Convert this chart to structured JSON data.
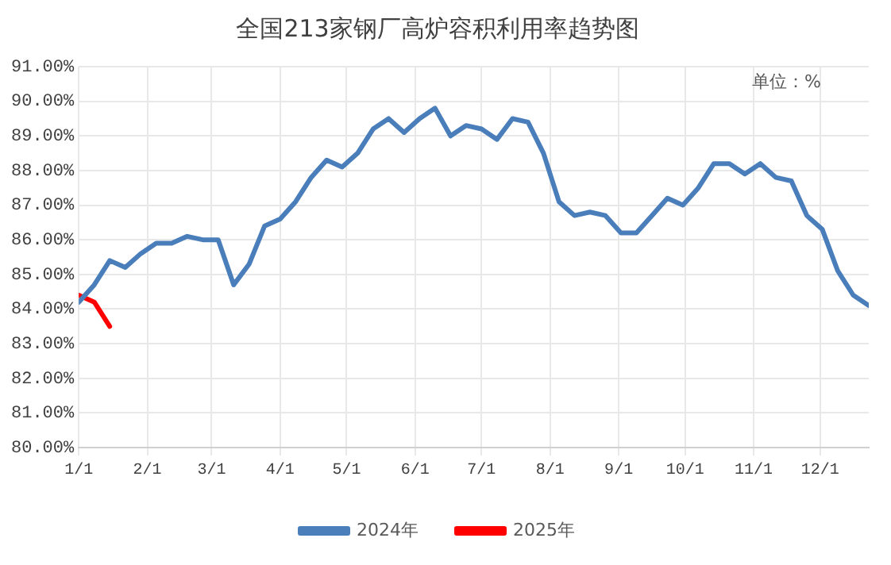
{
  "chart_data": {
    "type": "line",
    "title": "全国213家钢厂高炉容积利用率趋势图",
    "annotations": [
      "单位：%"
    ],
    "series": [
      {
        "name": "2024年",
        "color": "#4a7ebb",
        "x": [
          "--01-01",
          "--01-08",
          "--01-15",
          "--01-22",
          "--01-29",
          "--02-05",
          "--02-12",
          "--02-19",
          "--02-26",
          "--03-04",
          "--03-11",
          "--03-18",
          "--03-25",
          "--04-01",
          "--04-08",
          "--04-15",
          "--04-22",
          "--04-29",
          "--05-06",
          "--05-13",
          "--05-20",
          "--05-27",
          "--06-03",
          "--06-10",
          "--06-17",
          "--06-24",
          "--07-01",
          "--07-08",
          "--07-15",
          "--07-22",
          "--07-29",
          "--08-05",
          "--08-12",
          "--08-19",
          "--08-26",
          "--09-02",
          "--09-09",
          "--09-16",
          "--09-23",
          "--09-30",
          "--10-07",
          "--10-14",
          "--10-21",
          "--10-28",
          "--11-04",
          "--11-11",
          "--11-18",
          "--11-25",
          "--12-02",
          "--12-09",
          "--12-16",
          "--12-23"
        ],
        "values": [
          84.2,
          84.7,
          85.4,
          85.2,
          85.6,
          85.9,
          85.9,
          86.1,
          86.0,
          86.0,
          84.7,
          85.3,
          86.4,
          86.6,
          87.1,
          87.8,
          88.3,
          88.1,
          88.5,
          89.2,
          89.5,
          89.1,
          89.5,
          89.8,
          89.0,
          89.3,
          89.2,
          88.9,
          89.5,
          89.4,
          88.5,
          87.1,
          86.7,
          86.8,
          86.7,
          86.2,
          86.2,
          86.7,
          87.2,
          87.0,
          87.5,
          88.2,
          88.2,
          87.9,
          88.2,
          87.8,
          87.7,
          86.7,
          86.3,
          85.1,
          84.4,
          84.1
        ]
      },
      {
        "name": "2025年",
        "color": "#ff0000",
        "x": [
          "--01-01",
          "--01-08",
          "--01-15"
        ],
        "values": [
          84.4,
          84.2,
          83.5
        ]
      }
    ],
    "xlim": [
      "--01-01",
      "--12-23"
    ],
    "xticks": [
      {
        "value": "--01-01",
        "label": "1/1"
      },
      {
        "value": "--02-01",
        "label": "2/1"
      },
      {
        "value": "--03-01",
        "label": "3/1"
      },
      {
        "value": "--04-01",
        "label": "4/1"
      },
      {
        "value": "--05-01",
        "label": "5/1"
      },
      {
        "value": "--06-01",
        "label": "6/1"
      },
      {
        "value": "--07-01",
        "label": "7/1"
      },
      {
        "value": "--08-01",
        "label": "8/1"
      },
      {
        "value": "--09-01",
        "label": "9/1"
      },
      {
        "value": "--10-01",
        "label": "10/1"
      },
      {
        "value": "--11-01",
        "label": "11/1"
      },
      {
        "value": "--12-01",
        "label": "12/1"
      }
    ],
    "ylim": [
      80,
      91
    ],
    "yticks": [
      {
        "value": 80,
        "label": "80.00%"
      },
      {
        "value": 81,
        "label": "81.00%"
      },
      {
        "value": 82,
        "label": "82.00%"
      },
      {
        "value": 83,
        "label": "83.00%"
      },
      {
        "value": 84,
        "label": "84.00%"
      },
      {
        "value": 85,
        "label": "85.00%"
      },
      {
        "value": 86,
        "label": "86.00%"
      },
      {
        "value": 87,
        "label": "87.00%"
      },
      {
        "value": 88,
        "label": "88.00%"
      },
      {
        "value": 89,
        "label": "89.00%"
      },
      {
        "value": 90,
        "label": "90.00%"
      },
      {
        "value": 91,
        "label": "91.00%"
      }
    ],
    "grid": true,
    "legend": "bottom",
    "marker": "none",
    "line_style": "solid"
  }
}
